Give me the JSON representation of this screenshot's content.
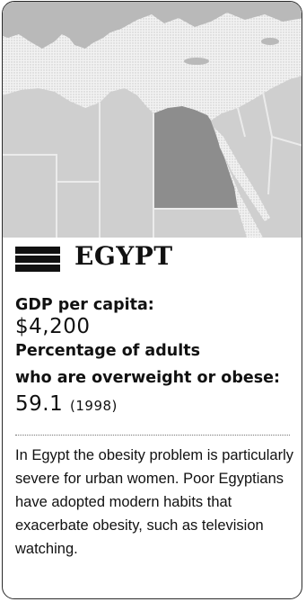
{
  "country": "EGYPT",
  "gdp": {
    "label": "GDP per capita:",
    "value": "$4,200"
  },
  "obesity": {
    "label_line1": "Percentage of adults",
    "label_line2": "who are overweight or obese:",
    "value": "59.1",
    "year": "(1998)"
  },
  "description": "In Egypt the obesity problem is particularly severe for urban women. Poor Egyptians have adopted modern habits that exacerbate obesity, such as television watching.",
  "colors": {
    "sea": "#eeeeee",
    "land": "#cfcfcf",
    "highlight": "#8d8d8d",
    "border": "#e8e8e8",
    "text": "#111111"
  }
}
